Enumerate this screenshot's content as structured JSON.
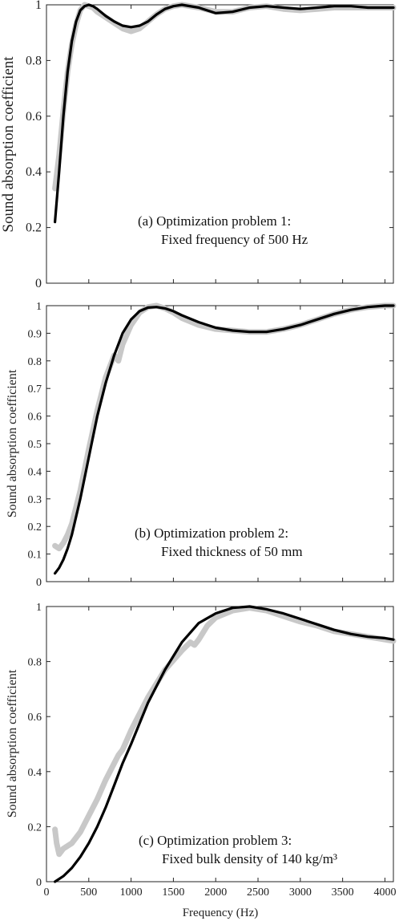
{
  "chart_data": [
    {
      "type": "line",
      "panel": "a",
      "ylabel": "Sound absorption coefficient",
      "xlim": [
        0,
        4100
      ],
      "ylim": [
        0,
        1
      ],
      "yticks": [
        "0",
        "0.2",
        "0.4",
        "0.6",
        "0.8",
        "1"
      ],
      "ytick_values": [
        0,
        0.2,
        0.4,
        0.6,
        0.8,
        1
      ],
      "xticks": [
        "500",
        "1000",
        "1500",
        "2000",
        "2500",
        "3000",
        "3500",
        "4000"
      ],
      "xtick_values": [
        500,
        1000,
        1500,
        2000,
        2500,
        3000,
        3500,
        4000
      ],
      "show_xticklabels": false,
      "annotation": [
        "(a)  Optimization problem 1:",
        "Fixed frequency of 500 Hz"
      ],
      "series": [
        {
          "role": "measured",
          "color": "#c8c8c8",
          "x": [
            100,
            150,
            200,
            250,
            300,
            350,
            400,
            450,
            500,
            550,
            600,
            700,
            800,
            900,
            1000,
            1100,
            1200,
            1300,
            1400,
            1500,
            1600,
            1800,
            2000,
            2200,
            2400,
            2600,
            2800,
            3000,
            3200,
            3400,
            3600,
            3800,
            4000,
            4100
          ],
          "y": [
            0.34,
            0.46,
            0.62,
            0.76,
            0.86,
            0.93,
            0.98,
            1.0,
            0.995,
            0.99,
            0.975,
            0.955,
            0.935,
            0.915,
            0.905,
            0.915,
            0.94,
            0.965,
            0.985,
            0.995,
            1.0,
            0.99,
            0.975,
            0.975,
            0.99,
            0.995,
            0.985,
            0.98,
            0.985,
            0.99,
            0.99,
            0.99,
            0.99,
            0.99
          ]
        },
        {
          "role": "predicted",
          "color": "#000000",
          "x": [
            100,
            150,
            200,
            250,
            300,
            350,
            400,
            450,
            500,
            550,
            600,
            700,
            800,
            900,
            1000,
            1100,
            1200,
            1300,
            1400,
            1500,
            1600,
            1800,
            2000,
            2200,
            2400,
            2600,
            2800,
            3000,
            3200,
            3400,
            3600,
            3800,
            4000,
            4100
          ],
          "y": [
            0.22,
            0.4,
            0.6,
            0.76,
            0.87,
            0.94,
            0.98,
            0.995,
            1.0,
            0.995,
            0.985,
            0.96,
            0.94,
            0.925,
            0.92,
            0.925,
            0.94,
            0.965,
            0.985,
            0.995,
            1.0,
            0.99,
            0.97,
            0.975,
            0.99,
            0.995,
            0.99,
            0.985,
            0.99,
            0.995,
            0.995,
            0.99,
            0.99,
            0.99
          ]
        }
      ]
    },
    {
      "type": "line",
      "panel": "b",
      "ylabel": "Sound absorption coefficient",
      "xlim": [
        0,
        4100
      ],
      "ylim": [
        0,
        1
      ],
      "yticks": [
        "0",
        "0.1",
        "0.2",
        "0.3",
        "0.4",
        "0.5",
        "0.6",
        "0.7",
        "0.8",
        "0.9",
        "1"
      ],
      "ytick_values": [
        0,
        0.1,
        0.2,
        0.3,
        0.4,
        0.5,
        0.6,
        0.7,
        0.8,
        0.9,
        1
      ],
      "xticks": [
        "500",
        "1000",
        "1500",
        "2000",
        "2500",
        "3000",
        "3500",
        "4000"
      ],
      "xtick_values": [
        500,
        1000,
        1500,
        2000,
        2500,
        3000,
        3500,
        4000
      ],
      "show_xticklabels": false,
      "annotation": [
        "(b) Optimization problem 2:",
        "Fixed thickness of 50 mm"
      ],
      "series": [
        {
          "role": "measured",
          "color": "#c8c8c8",
          "x": [
            100,
            150,
            200,
            250,
            300,
            400,
            500,
            600,
            700,
            800,
            850,
            900,
            1000,
            1100,
            1200,
            1300,
            1400,
            1500,
            1600,
            1800,
            2000,
            2200,
            2400,
            2600,
            2800,
            3000,
            3200,
            3400,
            3600,
            3800,
            4000,
            4100
          ],
          "y": [
            0.13,
            0.12,
            0.14,
            0.17,
            0.21,
            0.33,
            0.48,
            0.62,
            0.74,
            0.82,
            0.8,
            0.86,
            0.93,
            0.975,
            0.995,
            1.0,
            0.99,
            0.975,
            0.955,
            0.93,
            0.915,
            0.91,
            0.905,
            0.905,
            0.915,
            0.93,
            0.95,
            0.97,
            0.985,
            0.995,
            1.0,
            1.0
          ]
        },
        {
          "role": "predicted",
          "color": "#000000",
          "x": [
            100,
            150,
            200,
            250,
            300,
            400,
            500,
            600,
            700,
            800,
            900,
            1000,
            1100,
            1200,
            1300,
            1400,
            1500,
            1600,
            1800,
            2000,
            2200,
            2400,
            2600,
            2800,
            3000,
            3200,
            3400,
            3600,
            3800,
            4000,
            4100
          ],
          "y": [
            0.03,
            0.05,
            0.08,
            0.12,
            0.17,
            0.3,
            0.45,
            0.6,
            0.72,
            0.82,
            0.9,
            0.95,
            0.98,
            0.993,
            0.995,
            0.99,
            0.98,
            0.965,
            0.94,
            0.92,
            0.91,
            0.905,
            0.905,
            0.915,
            0.93,
            0.95,
            0.97,
            0.985,
            0.995,
            1.0,
            1.0
          ]
        }
      ]
    },
    {
      "type": "line",
      "panel": "c",
      "ylabel": "Sound absorption coefficient",
      "xlabel": "Frequency (Hz)",
      "xlim": [
        0,
        4100
      ],
      "ylim": [
        0,
        1
      ],
      "yticks": [
        "0",
        "0.2",
        "0.4",
        "0.6",
        "0.8",
        "1"
      ],
      "ytick_values": [
        0,
        0.2,
        0.4,
        0.6,
        0.8,
        1
      ],
      "xticks": [
        "0",
        "500",
        "1000",
        "1500",
        "2000",
        "2500",
        "3000",
        "3500",
        "4000"
      ],
      "xtick_values": [
        0,
        500,
        1000,
        1500,
        2000,
        2500,
        3000,
        3500,
        4000
      ],
      "show_xticklabels": true,
      "annotation": [
        "(c) Optimization problem 3:",
        "Fixed bulk density of 140 kg/m³"
      ],
      "series": [
        {
          "role": "measured",
          "color": "#c8c8c8",
          "x": [
            100,
            120,
            150,
            200,
            300,
            400,
            500,
            600,
            700,
            800,
            850,
            900,
            1000,
            1200,
            1400,
            1600,
            1700,
            1750,
            1800,
            1900,
            2000,
            2200,
            2400,
            2600,
            2800,
            3000,
            3200,
            3400,
            3600,
            3800,
            4000,
            4100
          ],
          "y": [
            0.19,
            0.14,
            0.1,
            0.12,
            0.14,
            0.18,
            0.24,
            0.3,
            0.37,
            0.43,
            0.46,
            0.48,
            0.55,
            0.67,
            0.77,
            0.84,
            0.87,
            0.86,
            0.88,
            0.93,
            0.96,
            0.985,
            0.995,
            0.985,
            0.965,
            0.945,
            0.93,
            0.91,
            0.9,
            0.89,
            0.88,
            0.875
          ]
        },
        {
          "role": "predicted",
          "color": "#000000",
          "x": [
            100,
            200,
            300,
            400,
            500,
            600,
            700,
            800,
            900,
            1000,
            1200,
            1400,
            1600,
            1800,
            2000,
            2200,
            2400,
            2600,
            2800,
            3000,
            3200,
            3400,
            3600,
            3800,
            4000,
            4100
          ],
          "y": [
            0.0,
            0.02,
            0.05,
            0.09,
            0.14,
            0.2,
            0.27,
            0.35,
            0.43,
            0.5,
            0.65,
            0.77,
            0.87,
            0.94,
            0.975,
            0.995,
            1.0,
            0.99,
            0.975,
            0.955,
            0.935,
            0.915,
            0.9,
            0.89,
            0.885,
            0.88
          ]
        }
      ]
    }
  ]
}
